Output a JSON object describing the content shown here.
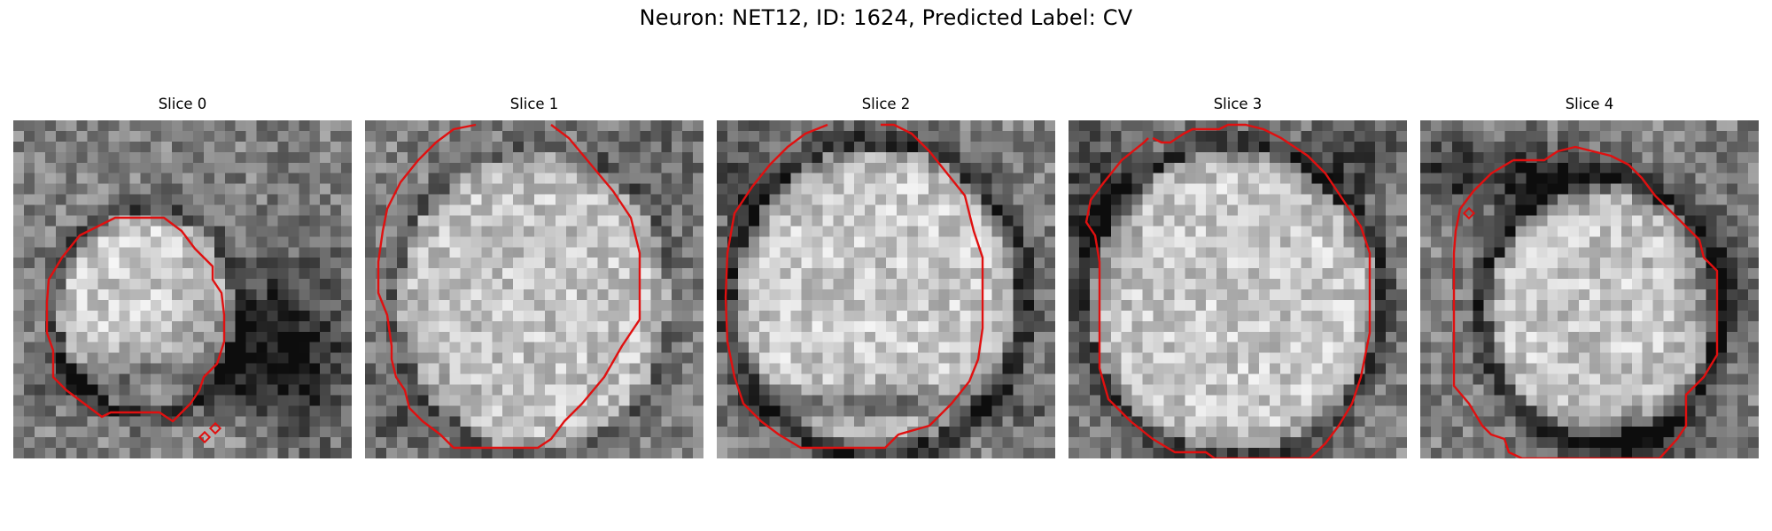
{
  "figure": {
    "title": "Neuron: NET12, ID: 1624, Predicted Label: CV",
    "contour_color": "#e01010"
  },
  "panels": [
    {
      "title": "Slice 0"
    },
    {
      "title": "Slice 1"
    },
    {
      "title": "Slice 2"
    },
    {
      "title": "Slice 3"
    },
    {
      "title": "Slice 4"
    }
  ]
}
